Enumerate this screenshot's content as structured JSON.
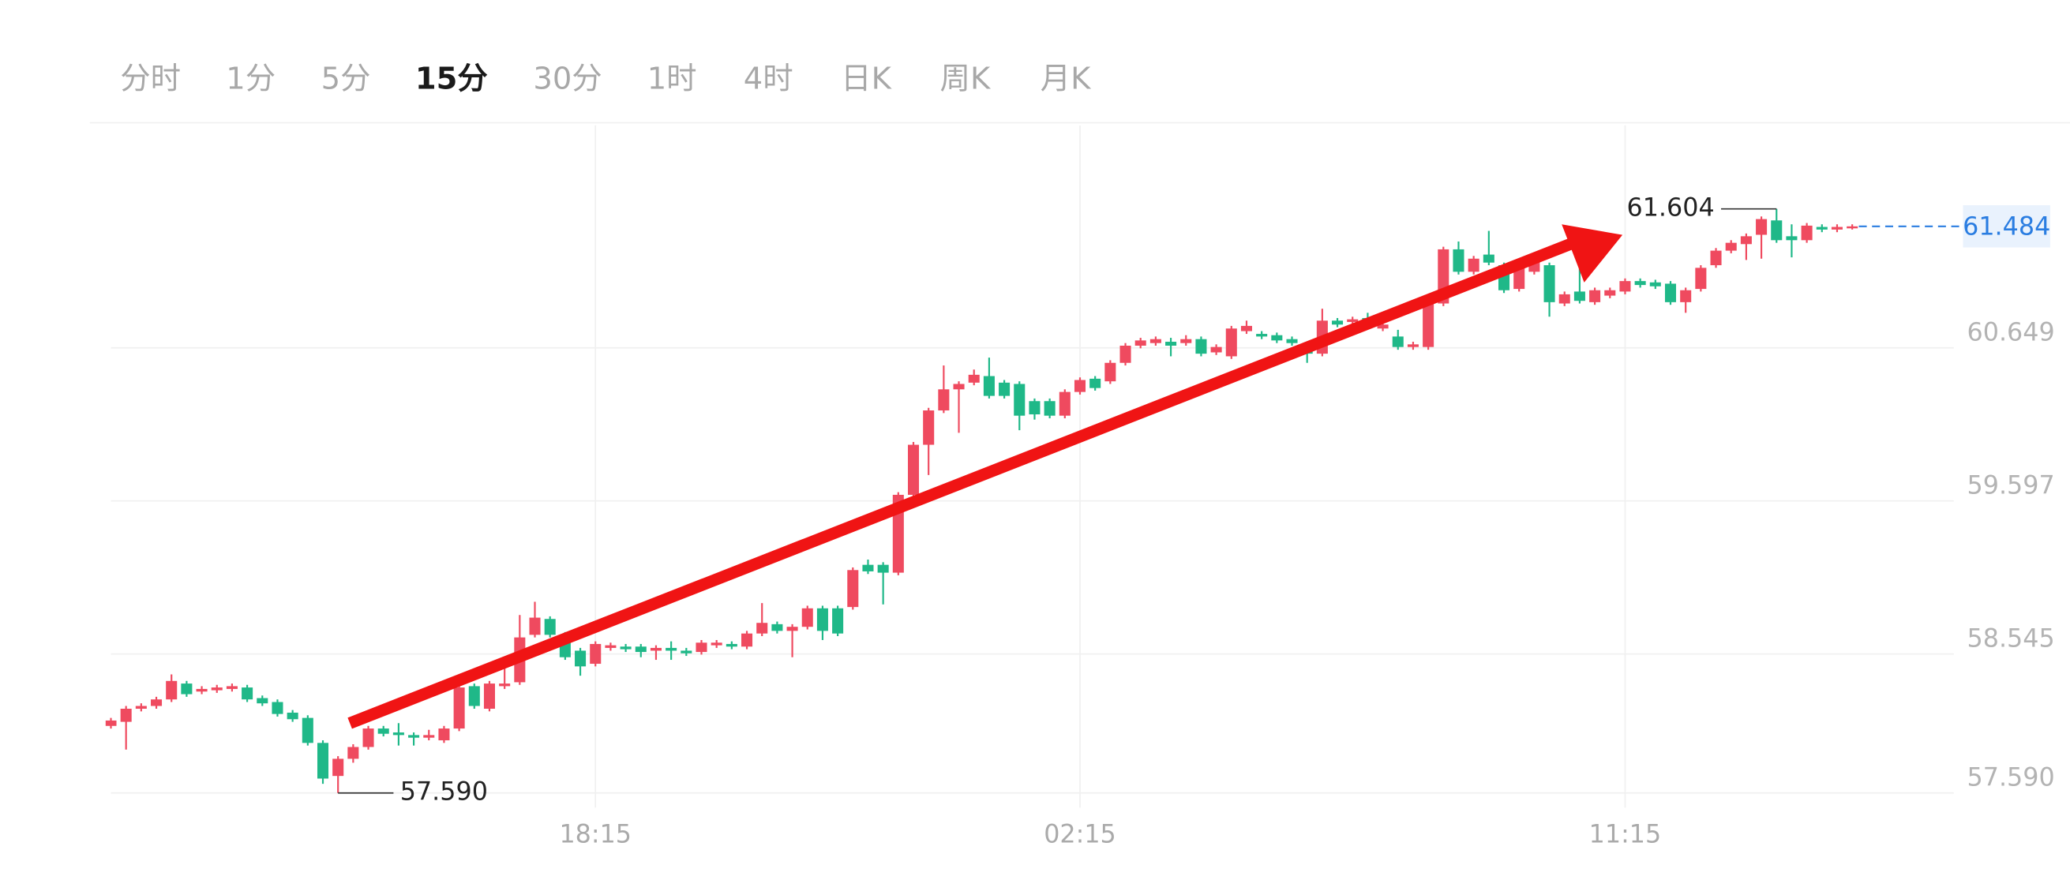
{
  "tabs": {
    "items": [
      "分时",
      "1分",
      "5分",
      "15分",
      "30分",
      "1时",
      "4时",
      "日K",
      "周K",
      "月K"
    ],
    "active": 3
  },
  "chart_data": {
    "type": "candlestick",
    "categories": [
      null,
      null,
      null,
      null,
      null,
      null,
      null,
      null,
      null,
      null,
      null,
      null,
      null,
      null,
      null,
      null,
      null,
      null,
      null,
      null,
      null,
      null,
      null,
      null,
      null,
      null,
      null,
      null,
      null,
      null,
      null,
      null,
      "18:15",
      null,
      null,
      null,
      null,
      null,
      null,
      null,
      null,
      null,
      null,
      null,
      null,
      null,
      null,
      null,
      null,
      null,
      null,
      null,
      null,
      null,
      null,
      null,
      null,
      null,
      null,
      null,
      null,
      null,
      null,
      null,
      "02:15",
      null,
      null,
      null,
      null,
      null,
      null,
      null,
      null,
      null,
      null,
      null,
      null,
      null,
      null,
      null,
      null,
      null,
      null,
      null,
      null,
      null,
      null,
      null,
      null,
      null,
      null,
      null,
      null,
      null,
      null,
      null,
      null,
      null,
      null,
      null,
      "11:15",
      null,
      null,
      null,
      null,
      null,
      null,
      null,
      null,
      null,
      null,
      null,
      null,
      null,
      null,
      null
    ],
    "open": [
      58.051,
      58.079,
      58.169,
      58.188,
      58.233,
      58.342,
      58.287,
      58.296,
      58.305,
      58.315,
      58.242,
      58.215,
      58.142,
      58.106,
      57.934,
      57.707,
      57.825,
      57.906,
      58.033,
      58.006,
      57.988,
      57.97,
      57.952,
      58.033,
      58.324,
      58.169,
      58.324,
      58.351,
      58.677,
      58.786,
      58.677,
      58.568,
      58.478,
      58.587,
      58.596,
      58.596,
      58.568,
      58.587,
      58.568,
      58.559,
      58.605,
      58.614,
      58.596,
      58.686,
      58.75,
      58.704,
      58.732,
      58.859,
      58.859,
      58.868,
      59.158,
      59.158,
      59.104,
      59.639,
      59.983,
      60.219,
      60.364,
      60.41,
      60.455,
      60.41,
      60.401,
      60.283,
      60.283,
      60.183,
      60.346,
      60.437,
      60.419,
      60.546,
      60.664,
      60.682,
      60.691,
      60.682,
      60.709,
      60.618,
      60.591,
      60.764,
      60.745,
      60.736,
      60.709,
      60.664,
      60.609,
      60.836,
      60.827,
      60.854,
      60.782,
      60.727,
      60.655,
      60.655,
      60.954,
      61.326,
      61.172,
      61.29,
      61.217,
      61.054,
      61.172,
      61.217,
      60.954,
      61.036,
      60.963,
      61.008,
      61.036,
      61.108,
      61.099,
      61.09,
      60.963,
      61.054,
      61.217,
      61.317,
      61.362,
      61.426,
      61.525,
      61.416,
      61.389,
      61.48,
      61.462,
      61.48
    ],
    "high": [
      58.106,
      58.188,
      58.206,
      58.251,
      58.405,
      58.36,
      58.324,
      58.333,
      58.342,
      58.333,
      58.26,
      58.233,
      58.16,
      58.124,
      57.952,
      57.843,
      57.925,
      58.051,
      58.051,
      58.07,
      58.006,
      58.024,
      58.051,
      58.333,
      58.342,
      58.36,
      58.46,
      58.813,
      58.904,
      58.804,
      58.696,
      58.587,
      58.632,
      58.623,
      58.614,
      58.614,
      58.605,
      58.632,
      58.587,
      58.641,
      58.641,
      58.632,
      58.704,
      58.895,
      58.768,
      58.75,
      58.877,
      58.877,
      58.877,
      59.14,
      59.194,
      59.176,
      59.657,
      60.002,
      60.237,
      60.528,
      60.419,
      60.5,
      60.582,
      60.428,
      60.419,
      60.301,
      60.301,
      60.364,
      60.446,
      60.455,
      60.564,
      60.682,
      60.718,
      60.727,
      60.718,
      60.736,
      60.727,
      60.673,
      60.8,
      60.836,
      60.764,
      60.754,
      60.727,
      60.682,
      60.918,
      60.854,
      60.863,
      60.89,
      60.827,
      60.773,
      60.691,
      60.972,
      61.344,
      61.38,
      61.281,
      61.453,
      61.235,
      61.226,
      61.262,
      61.235,
      61.036,
      61.199,
      61.063,
      61.063,
      61.126,
      61.126,
      61.117,
      61.108,
      61.063,
      61.217,
      61.335,
      61.389,
      61.435,
      61.552,
      61.604,
      61.498,
      61.507,
      61.498,
      61.498,
      61.498
    ],
    "low": [
      58.033,
      57.888,
      58.151,
      58.169,
      58.215,
      58.251,
      58.269,
      58.278,
      58.287,
      58.215,
      58.188,
      58.115,
      58.079,
      57.916,
      57.653,
      57.59,
      57.798,
      57.888,
      57.979,
      57.916,
      57.916,
      57.952,
      57.934,
      58.015,
      58.169,
      58.151,
      58.305,
      58.333,
      58.659,
      58.659,
      58.505,
      58.396,
      58.46,
      58.568,
      58.559,
      58.523,
      58.505,
      58.505,
      58.532,
      58.541,
      58.587,
      58.578,
      58.578,
      58.668,
      58.686,
      58.523,
      58.714,
      58.641,
      58.668,
      58.85,
      59.095,
      58.886,
      59.086,
      59.621,
      59.775,
      60.201,
      60.065,
      60.392,
      60.301,
      60.301,
      60.083,
      60.156,
      60.165,
      60.165,
      60.328,
      60.355,
      60.401,
      60.528,
      60.646,
      60.664,
      60.591,
      60.664,
      60.591,
      60.6,
      60.573,
      60.745,
      60.709,
      60.682,
      60.664,
      60.546,
      60.591,
      60.791,
      60.809,
      60.809,
      60.764,
      60.636,
      60.636,
      60.636,
      60.936,
      61.153,
      61.153,
      61.217,
      61.026,
      61.036,
      61.153,
      60.863,
      60.936,
      60.954,
      60.945,
      60.99,
      61.017,
      61.063,
      61.054,
      60.945,
      60.89,
      61.036,
      61.199,
      61.299,
      61.253,
      61.262,
      61.371,
      61.271,
      61.371,
      61.444,
      61.444,
      61.462
    ],
    "close": [
      58.088,
      58.169,
      58.188,
      58.233,
      58.36,
      58.269,
      58.305,
      58.315,
      58.324,
      58.233,
      58.206,
      58.133,
      58.097,
      57.934,
      57.689,
      57.825,
      57.906,
      58.033,
      57.997,
      57.988,
      57.97,
      57.988,
      58.033,
      58.315,
      58.188,
      58.342,
      58.342,
      58.659,
      58.795,
      58.677,
      58.523,
      58.46,
      58.614,
      58.605,
      58.578,
      58.559,
      58.587,
      58.568,
      58.55,
      58.623,
      58.623,
      58.596,
      58.686,
      58.759,
      58.704,
      58.732,
      58.859,
      58.704,
      58.686,
      59.122,
      59.113,
      59.104,
      59.639,
      59.983,
      60.219,
      60.364,
      60.401,
      60.464,
      60.319,
      60.319,
      60.183,
      60.192,
      60.183,
      60.346,
      60.428,
      60.373,
      60.546,
      60.664,
      60.7,
      60.709,
      60.664,
      60.709,
      60.609,
      60.655,
      60.782,
      60.8,
      60.727,
      60.7,
      60.682,
      60.609,
      60.836,
      60.809,
      60.845,
      60.827,
      60.809,
      60.655,
      60.673,
      60.954,
      61.326,
      61.172,
      61.262,
      61.235,
      61.045,
      61.208,
      61.244,
      60.963,
      61.017,
      60.972,
      61.045,
      61.045,
      61.108,
      61.081,
      61.072,
      60.963,
      61.045,
      61.199,
      61.317,
      61.371,
      61.416,
      61.534,
      61.389,
      61.389,
      61.489,
      61.462,
      61.48,
      61.484
    ],
    "up_color": "#ef4a5f",
    "down_color": "#1fb888",
    "ylim": [
      57.489,
      62.178
    ],
    "yticks": [
      {
        "value": 57.59,
        "label": "57.590"
      },
      58.545,
      59.597,
      60.649
    ],
    "grid": true,
    "high_label": "61.604",
    "low_label": "57.590",
    "last_price": 61.484,
    "last_price_color": "#2a7de1"
  }
}
